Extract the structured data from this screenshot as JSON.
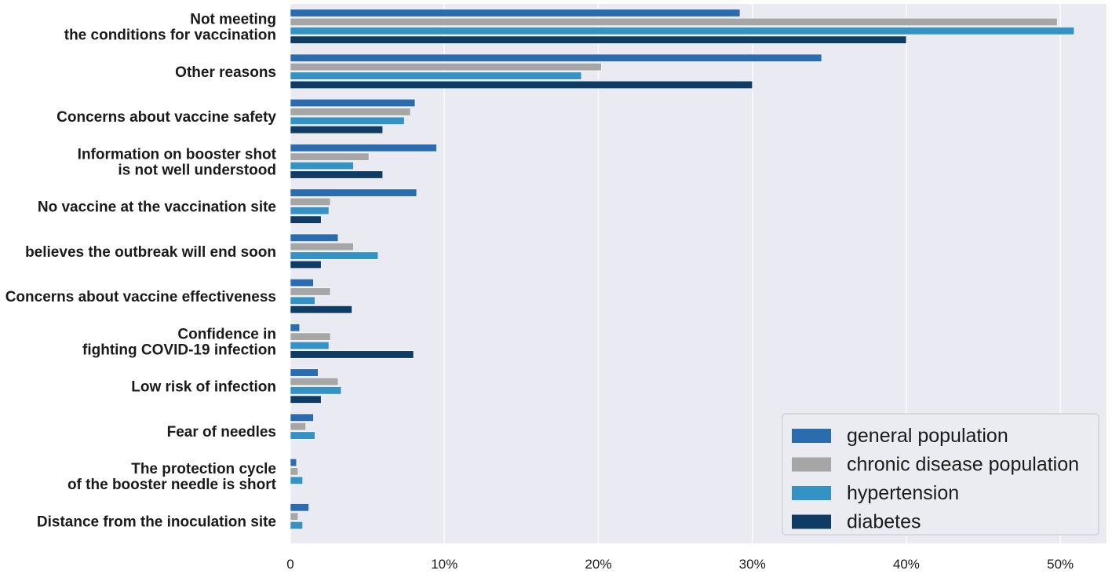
{
  "chart_data": {
    "type": "bar",
    "orientation": "horizontal",
    "title": "",
    "xlabel": "",
    "ylabel": "",
    "xlim": [
      0,
      53
    ],
    "grid": true,
    "legend_position": "bottom-right",
    "x_ticks": [
      {
        "value": 0,
        "label": "0"
      },
      {
        "value": 10,
        "label": "10%"
      },
      {
        "value": 20,
        "label": "20%"
      },
      {
        "value": 30,
        "label": "30%"
      },
      {
        "value": 40,
        "label": "40%"
      },
      {
        "value": 50,
        "label": "50%"
      }
    ],
    "categories": [
      [
        "Not meeting",
        "the conditions for vaccination"
      ],
      [
        "Other reasons"
      ],
      [
        "Concerns about vaccine safety"
      ],
      [
        "Information on booster shot",
        "is not well understood"
      ],
      [
        "No vaccine at the vaccination site"
      ],
      [
        "believes the outbreak will end soon"
      ],
      [
        "Concerns about vaccine effectiveness"
      ],
      [
        "Confidence in",
        "fighting COVID-19 infection"
      ],
      [
        "Low risk of infection"
      ],
      [
        "Fear of needles"
      ],
      [
        "The protection cycle",
        "of the booster needle is short"
      ],
      [
        "Distance from the inoculation site"
      ]
    ],
    "series": [
      {
        "name": "general population",
        "color": "#2b6cb0",
        "values": [
          29.2,
          34.5,
          8.1,
          9.5,
          8.2,
          3.1,
          1.5,
          0.6,
          1.8,
          1.5,
          0.4,
          1.2
        ]
      },
      {
        "name": "chronic disease population",
        "color": "#a6a6a6",
        "values": [
          49.8,
          20.2,
          7.8,
          5.1,
          2.6,
          4.1,
          2.6,
          2.6,
          3.1,
          1.0,
          0.5,
          0.5
        ]
      },
      {
        "name": "hypertension",
        "color": "#3592c4",
        "values": [
          50.9,
          18.9,
          7.4,
          4.1,
          2.5,
          5.7,
          1.6,
          2.5,
          3.3,
          1.6,
          0.8,
          0.8
        ]
      },
      {
        "name": "diabetes",
        "color": "#0f3c64",
        "values": [
          40.0,
          30.0,
          6.0,
          6.0,
          2.0,
          2.0,
          4.0,
          8.0,
          2.0,
          0,
          0,
          0
        ]
      }
    ]
  }
}
